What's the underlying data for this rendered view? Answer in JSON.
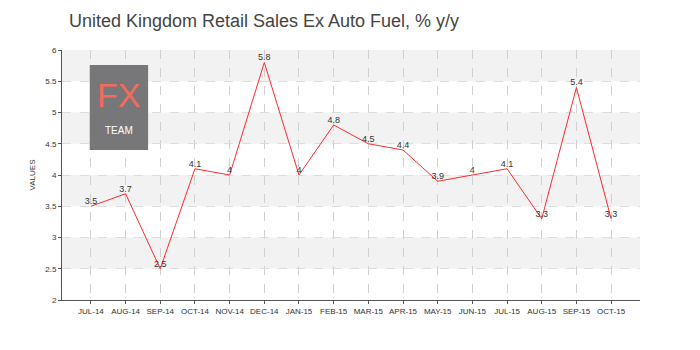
{
  "chart_data": {
    "type": "line",
    "title": "United Kingdom Retail Sales Ex Auto Fuel, % y/y",
    "y_label": "VALUES",
    "categories": [
      "JUL-14",
      "AUG-14",
      "SEP-14",
      "OCT-14",
      "NOV-14",
      "DEC-14",
      "JAN-15",
      "FEB-15",
      "MAR-15",
      "APR-15",
      "MAY-15",
      "JUN-15",
      "JUL-15",
      "AUG-15",
      "SEP-15",
      "OCT-15"
    ],
    "values": [
      3.5,
      3.7,
      2.5,
      4.1,
      4,
      5.8,
      4,
      4.8,
      4.5,
      4.4,
      3.9,
      4,
      4.1,
      3.3,
      5.4,
      3.3
    ],
    "color": "#ff2a2a",
    "ylim": [
      2,
      6
    ],
    "yticks": [
      2,
      2.5,
      3,
      3.5,
      4,
      4.5,
      5,
      5.5,
      6
    ],
    "grid": true,
    "data_labels": true,
    "annotations": [
      "FX",
      "TEAM"
    ]
  }
}
